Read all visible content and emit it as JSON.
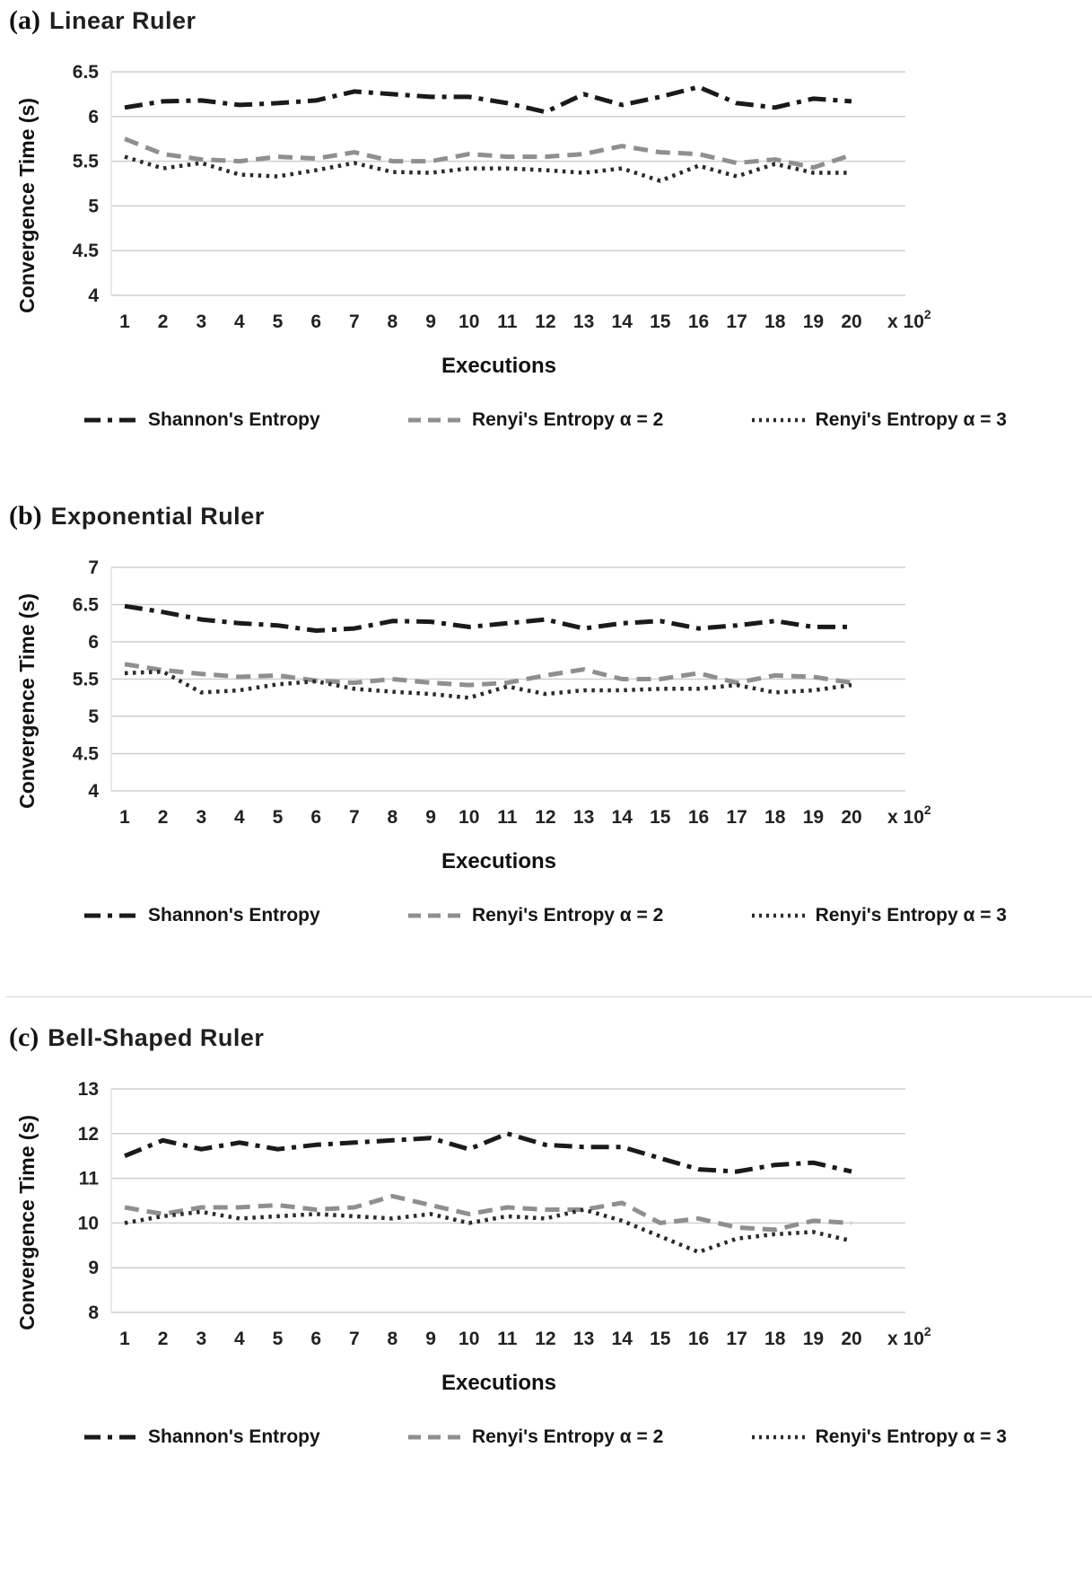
{
  "page": {
    "background": "#ffffff"
  },
  "chart_data": [
    {
      "type": "line",
      "prefix": "(a)",
      "title": "Linear Ruler",
      "ylabel": "Convergence Time (s)",
      "xlabel": "Executions",
      "x_suffix": "x 10",
      "x_suffix_exp": "2",
      "ylim": [
        4,
        6.5
      ],
      "yticks": [
        4,
        4.5,
        5,
        5.5,
        6,
        6.5
      ],
      "grid": true,
      "grid_color": "#cfcfcf",
      "legend_position": "bottom",
      "categories": [
        "1",
        "2",
        "3",
        "4",
        "5",
        "6",
        "7",
        "8",
        "9",
        "10",
        "11",
        "12",
        "13",
        "14",
        "15",
        "16",
        "17",
        "18",
        "19",
        "20"
      ],
      "series": [
        {
          "key": "shannon",
          "name": "Shannon's Entropy",
          "style": "dashdot",
          "color": "#1a1a1a",
          "values": [
            6.1,
            6.17,
            6.18,
            6.13,
            6.15,
            6.18,
            6.28,
            6.25,
            6.22,
            6.22,
            6.15,
            6.05,
            6.25,
            6.13,
            6.22,
            6.33,
            6.15,
            6.1,
            6.2,
            6.17
          ]
        },
        {
          "key": "renyi-a2",
          "name": "Renyi's Entropy α = 2",
          "style": "dashed",
          "color": "#8f8f8f",
          "values": [
            5.75,
            5.58,
            5.52,
            5.5,
            5.55,
            5.53,
            5.6,
            5.5,
            5.5,
            5.58,
            5.55,
            5.55,
            5.58,
            5.67,
            5.6,
            5.58,
            5.48,
            5.52,
            5.43,
            5.57
          ]
        },
        {
          "key": "renyi-a3",
          "name": "Renyi's Entropy α = 3",
          "style": "dotted",
          "color": "#2b2b2b",
          "values": [
            5.55,
            5.42,
            5.48,
            5.35,
            5.33,
            5.4,
            5.48,
            5.38,
            5.37,
            5.42,
            5.42,
            5.4,
            5.37,
            5.42,
            5.28,
            5.45,
            5.33,
            5.47,
            5.37,
            5.37
          ]
        }
      ]
    },
    {
      "type": "line",
      "prefix": "(b)",
      "title": "Exponential Ruler",
      "ylabel": "Convergence Time (s)",
      "xlabel": "Executions",
      "x_suffix": "x 10",
      "x_suffix_exp": "2",
      "ylim": [
        4,
        7
      ],
      "yticks": [
        4,
        4.5,
        5,
        5.5,
        6,
        6.5,
        7
      ],
      "grid": true,
      "grid_color": "#cfcfcf",
      "legend_position": "bottom",
      "categories": [
        "1",
        "2",
        "3",
        "4",
        "5",
        "6",
        "7",
        "8",
        "9",
        "10",
        "11",
        "12",
        "13",
        "14",
        "15",
        "16",
        "17",
        "18",
        "19",
        "20"
      ],
      "series": [
        {
          "key": "shannon",
          "name": "Shannon's Entropy",
          "style": "dashdot",
          "color": "#1a1a1a",
          "values": [
            6.48,
            6.4,
            6.3,
            6.25,
            6.22,
            6.15,
            6.18,
            6.28,
            6.27,
            6.2,
            6.25,
            6.3,
            6.18,
            6.25,
            6.28,
            6.18,
            6.22,
            6.28,
            6.2,
            6.2
          ]
        },
        {
          "key": "renyi-a2",
          "name": "Renyi's Entropy α = 2",
          "style": "dashed",
          "color": "#8f8f8f",
          "values": [
            5.7,
            5.62,
            5.57,
            5.53,
            5.55,
            5.48,
            5.45,
            5.5,
            5.45,
            5.42,
            5.45,
            5.55,
            5.63,
            5.5,
            5.5,
            5.58,
            5.45,
            5.55,
            5.53,
            5.45
          ]
        },
        {
          "key": "renyi-a3",
          "name": "Renyi's Entropy α = 3",
          "style": "dotted",
          "color": "#2b2b2b",
          "values": [
            5.58,
            5.6,
            5.32,
            5.35,
            5.43,
            5.47,
            5.37,
            5.33,
            5.3,
            5.25,
            5.4,
            5.3,
            5.35,
            5.35,
            5.37,
            5.37,
            5.42,
            5.32,
            5.35,
            5.42
          ]
        }
      ]
    },
    {
      "type": "line",
      "prefix": "(c)",
      "title": "Bell-Shaped Ruler",
      "ylabel": "Convergence Time (s)",
      "xlabel": "Executions",
      "x_suffix": "x 10",
      "x_suffix_exp": "2",
      "ylim": [
        8,
        13
      ],
      "yticks": [
        8,
        9,
        10,
        11,
        12,
        13
      ],
      "grid": true,
      "grid_color": "#cfcfcf",
      "legend_position": "bottom",
      "categories": [
        "1",
        "2",
        "3",
        "4",
        "5",
        "6",
        "7",
        "8",
        "9",
        "10",
        "11",
        "12",
        "13",
        "14",
        "15",
        "16",
        "17",
        "18",
        "19",
        "20"
      ],
      "series": [
        {
          "key": "shannon",
          "name": "Shannon's Entropy",
          "style": "dashdot",
          "color": "#1a1a1a",
          "values": [
            11.5,
            11.85,
            11.65,
            11.8,
            11.65,
            11.75,
            11.8,
            11.85,
            11.9,
            11.65,
            12.0,
            11.75,
            11.7,
            11.7,
            11.45,
            11.2,
            11.15,
            11.3,
            11.35,
            11.15
          ]
        },
        {
          "key": "renyi-a2",
          "name": "Renyi's Entropy α = 2",
          "style": "dashed",
          "color": "#8f8f8f",
          "values": [
            10.35,
            10.2,
            10.35,
            10.35,
            10.4,
            10.3,
            10.35,
            10.6,
            10.4,
            10.2,
            10.35,
            10.3,
            10.3,
            10.45,
            10.0,
            10.1,
            9.9,
            9.85,
            10.05,
            10.0
          ]
        },
        {
          "key": "renyi-a3",
          "name": "Renyi's Entropy α = 3",
          "style": "dotted",
          "color": "#2b2b2b",
          "values": [
            10.0,
            10.15,
            10.25,
            10.1,
            10.15,
            10.2,
            10.15,
            10.1,
            10.2,
            10.0,
            10.15,
            10.1,
            10.3,
            10.05,
            9.7,
            9.35,
            9.65,
            9.75,
            9.8,
            9.6
          ]
        }
      ]
    }
  ]
}
